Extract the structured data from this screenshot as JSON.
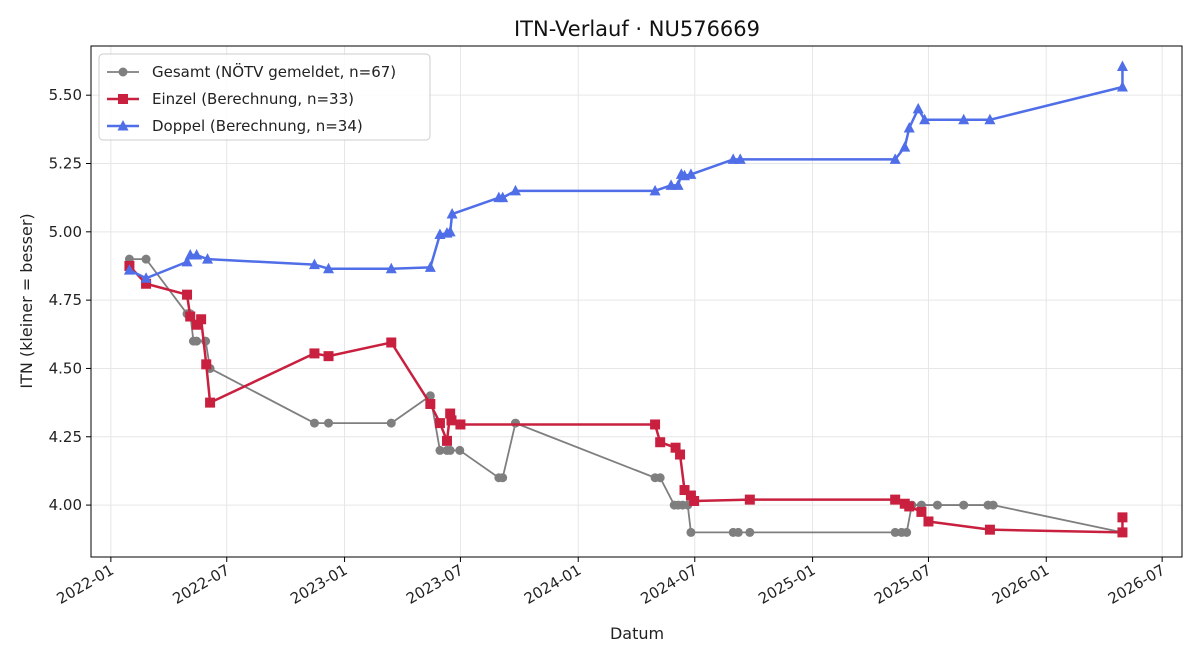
{
  "chart_data": {
    "type": "line",
    "title": "ITN-Verlauf · NU576669",
    "xlabel": "Datum",
    "ylabel": "ITN  (kleiner = besser)",
    "x_ticks": [
      "2022-01",
      "2022-07",
      "2023-01",
      "2023-07",
      "2024-01",
      "2024-07",
      "2025-01",
      "2025-07",
      "2026-01",
      "2026-07"
    ],
    "y_ticks": [
      "4.00",
      "4.25",
      "4.50",
      "4.75",
      "5.00",
      "5.25",
      "5.50"
    ],
    "ylim": [
      3.81,
      5.68
    ],
    "xlim": [
      "2021-12-01",
      "2026-08-01"
    ],
    "grid": true,
    "legend_position": "top-left",
    "series": [
      {
        "name": "Gesamt (NÖTV gemeldet, n=67)",
        "color": "#555555",
        "marker": "circle",
        "points": [
          [
            "2022-01-30",
            4.9
          ],
          [
            "2022-02-25",
            4.9
          ],
          [
            "2022-04-30",
            4.7
          ],
          [
            "2022-05-05",
            4.7
          ],
          [
            "2022-05-10",
            4.6
          ],
          [
            "2022-05-15",
            4.6
          ],
          [
            "2022-05-29",
            4.6
          ],
          [
            "2022-06-05",
            4.5
          ],
          [
            "2022-11-15",
            4.3
          ],
          [
            "2022-12-07",
            4.3
          ],
          [
            "2023-03-15",
            4.3
          ],
          [
            "2023-05-15",
            4.4
          ],
          [
            "2023-05-30",
            4.2
          ],
          [
            "2023-06-10",
            4.2
          ],
          [
            "2023-06-15",
            4.2
          ],
          [
            "2023-06-30",
            4.2
          ],
          [
            "2023-08-30",
            4.1
          ],
          [
            "2023-09-05",
            4.1
          ],
          [
            "2023-09-25",
            4.3
          ],
          [
            "2024-04-30",
            4.1
          ],
          [
            "2024-05-08",
            4.1
          ],
          [
            "2024-05-30",
            4.0
          ],
          [
            "2024-06-05",
            4.0
          ],
          [
            "2024-06-12",
            4.0
          ],
          [
            "2024-06-20",
            4.0
          ],
          [
            "2024-06-25",
            3.9
          ],
          [
            "2024-08-30",
            3.9
          ],
          [
            "2024-09-07",
            3.9
          ],
          [
            "2024-09-25",
            3.9
          ],
          [
            "2025-05-10",
            3.9
          ],
          [
            "2025-05-20",
            3.9
          ],
          [
            "2025-05-28",
            3.9
          ],
          [
            "2025-06-05",
            4.0
          ],
          [
            "2025-06-20",
            4.0
          ],
          [
            "2025-07-15",
            4.0
          ],
          [
            "2025-08-25",
            4.0
          ],
          [
            "2025-10-02",
            4.0
          ],
          [
            "2025-10-10",
            4.0
          ],
          [
            "2026-04-30",
            3.9
          ]
        ]
      },
      {
        "name": "Einzel (Berechnung, n=33)",
        "color": "#c8203e",
        "marker": "square",
        "points": [
          [
            "2022-01-30",
            4.875
          ],
          [
            "2022-02-25",
            4.81
          ],
          [
            "2022-04-30",
            4.77
          ],
          [
            "2022-05-05",
            4.69
          ],
          [
            "2022-05-15",
            4.66
          ],
          [
            "2022-05-22",
            4.68
          ],
          [
            "2022-05-30",
            4.515
          ],
          [
            "2022-06-05",
            4.375
          ],
          [
            "2022-11-15",
            4.555
          ],
          [
            "2022-12-07",
            4.545
          ],
          [
            "2023-03-15",
            4.595
          ],
          [
            "2023-05-15",
            4.37
          ],
          [
            "2023-05-30",
            4.3
          ],
          [
            "2023-06-10",
            4.235
          ],
          [
            "2023-06-15",
            4.335
          ],
          [
            "2023-06-17",
            4.31
          ],
          [
            "2023-07-01",
            4.295
          ],
          [
            "2024-04-30",
            4.295
          ],
          [
            "2024-05-08",
            4.23
          ],
          [
            "2024-06-01",
            4.21
          ],
          [
            "2024-06-08",
            4.185
          ],
          [
            "2024-06-15",
            4.055
          ],
          [
            "2024-06-25",
            4.035
          ],
          [
            "2024-06-30",
            4.015
          ],
          [
            "2024-09-25",
            4.02
          ],
          [
            "2025-05-10",
            4.02
          ],
          [
            "2025-05-25",
            4.005
          ],
          [
            "2025-06-01",
            3.995
          ],
          [
            "2025-06-20",
            3.975
          ],
          [
            "2025-07-01",
            3.94
          ],
          [
            "2025-10-05",
            3.91
          ],
          [
            "2026-04-30",
            3.9
          ],
          [
            "2026-04-30",
            3.955
          ]
        ]
      },
      {
        "name": "Doppel (Berechnung, n=34)",
        "color": "#4f6ee8",
        "marker": "triangle",
        "points": [
          [
            "2022-01-30",
            4.86
          ],
          [
            "2022-02-25",
            4.83
          ],
          [
            "2022-04-30",
            4.89
          ],
          [
            "2022-05-05",
            4.915
          ],
          [
            "2022-05-15",
            4.915
          ],
          [
            "2022-06-01",
            4.9
          ],
          [
            "2022-11-15",
            4.88
          ],
          [
            "2022-12-07",
            4.865
          ],
          [
            "2023-03-15",
            4.865
          ],
          [
            "2023-05-15",
            4.87
          ],
          [
            "2023-05-30",
            4.99
          ],
          [
            "2023-06-10",
            4.995
          ],
          [
            "2023-06-15",
            5.0
          ],
          [
            "2023-06-18",
            5.065
          ],
          [
            "2023-08-30",
            5.125
          ],
          [
            "2023-09-05",
            5.125
          ],
          [
            "2023-09-25",
            5.15
          ],
          [
            "2024-04-30",
            5.15
          ],
          [
            "2024-05-25",
            5.17
          ],
          [
            "2024-06-05",
            5.17
          ],
          [
            "2024-06-10",
            5.21
          ],
          [
            "2024-06-15",
            5.205
          ],
          [
            "2024-06-25",
            5.21
          ],
          [
            "2024-08-30",
            5.265
          ],
          [
            "2024-09-10",
            5.265
          ],
          [
            "2025-05-10",
            5.265
          ],
          [
            "2025-05-25",
            5.31
          ],
          [
            "2025-06-01",
            5.38
          ],
          [
            "2025-06-15",
            5.45
          ],
          [
            "2025-06-25",
            5.41
          ],
          [
            "2025-08-25",
            5.41
          ],
          [
            "2025-10-05",
            5.41
          ],
          [
            "2026-04-30",
            5.53
          ],
          [
            "2026-04-30",
            5.605
          ]
        ]
      }
    ]
  }
}
